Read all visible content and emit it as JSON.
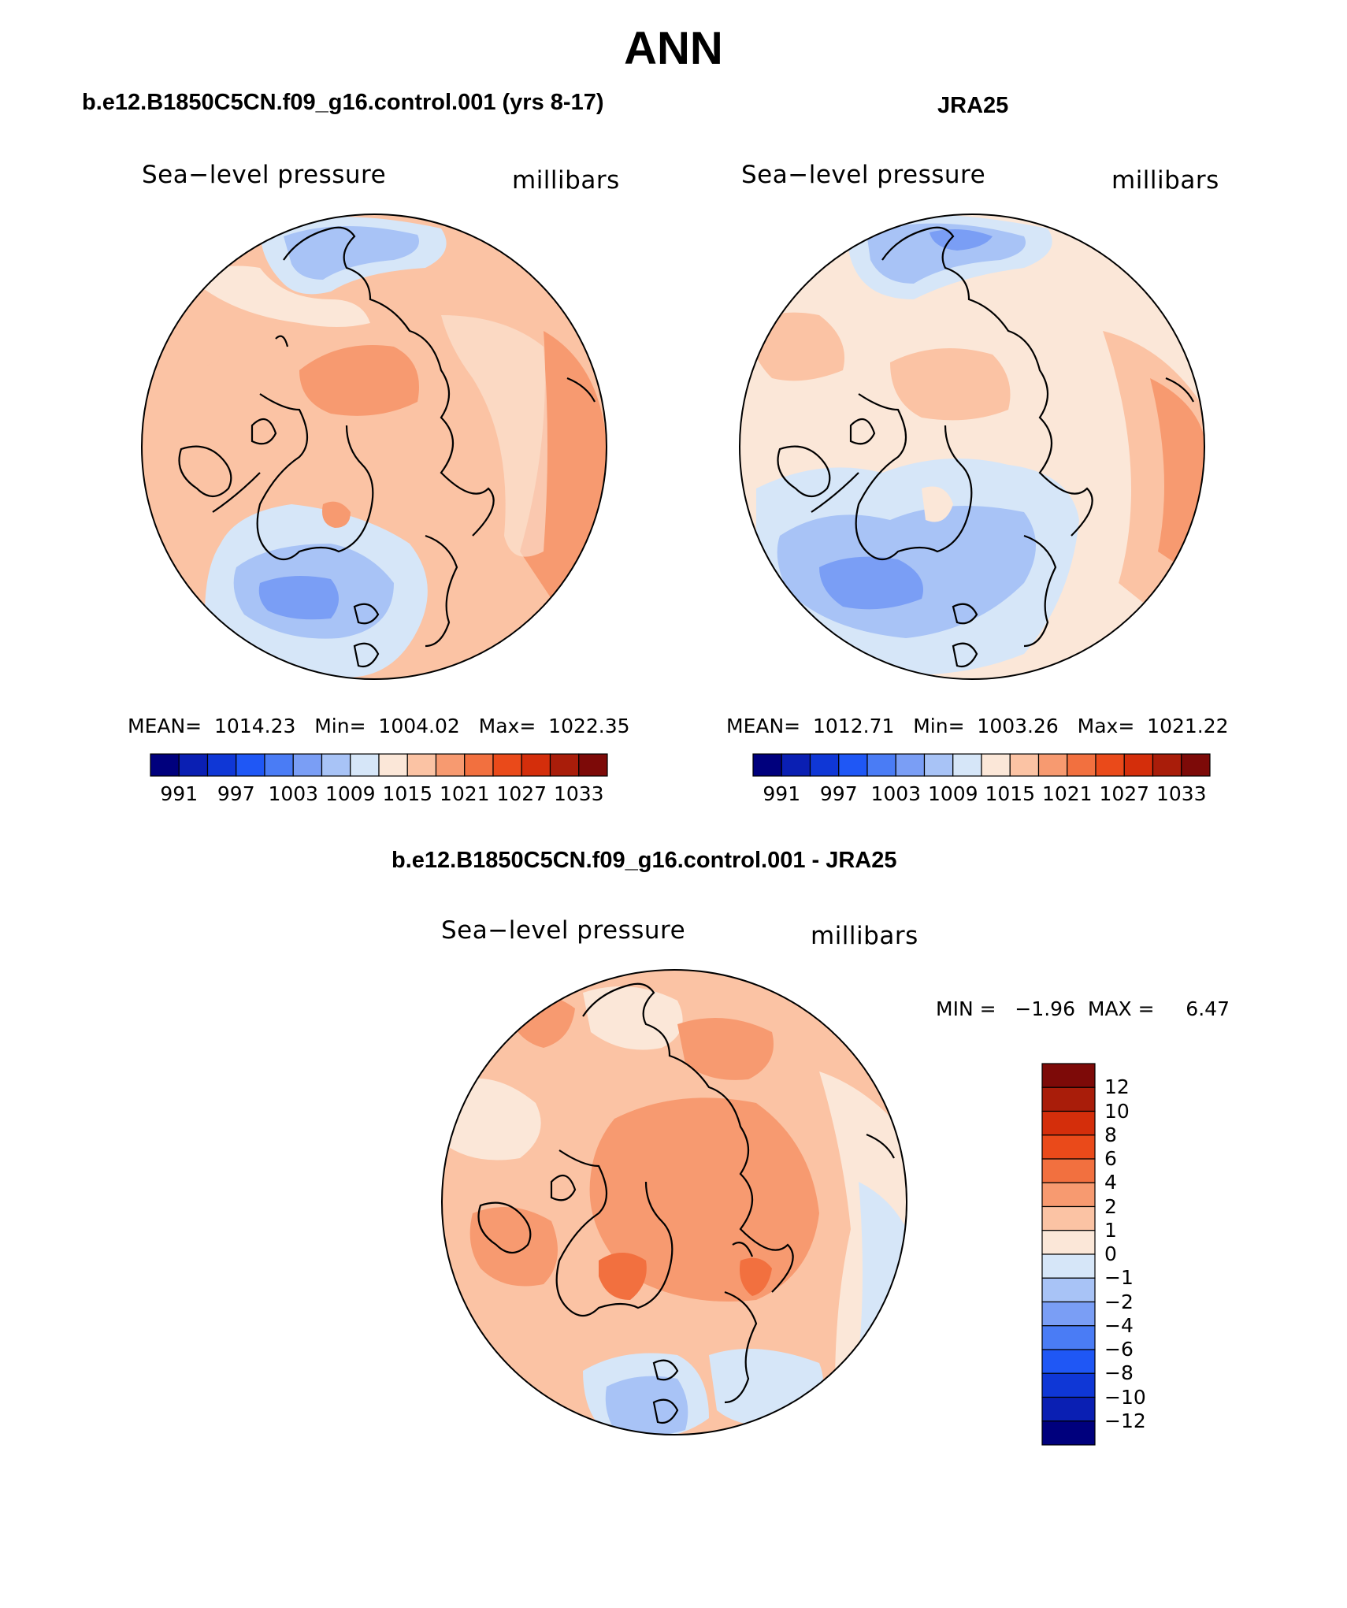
{
  "title": "ANN",
  "panels": {
    "model": {
      "title": "b.e12.B1850C5CN.f09_g16.control.001 (yrs 8-17)",
      "variable": "Sea−level pressure",
      "units": "millibars",
      "stats": "MEAN=  1014.23   Min=  1004.02   Max=  1022.35"
    },
    "obs": {
      "title": "JRA25",
      "variable": "Sea−level pressure",
      "units": "millibars",
      "stats": "MEAN=  1012.71   Min=  1003.26   Max=  1021.22"
    },
    "diff": {
      "title": "b.e12.B1850C5CN.f09_g16.control.001 - JRA25",
      "variable": "Sea−level pressure",
      "units": "millibars",
      "stats": "MIN =   −1.96  MAX =     6.47"
    }
  },
  "colorbar_abs": {
    "colors": [
      "#00007d",
      "#0a1fb3",
      "#0f37d6",
      "#1f57f5",
      "#4a7cf5",
      "#7a9ef5",
      "#a8c3f6",
      "#d6e6f8",
      "#fbe7d8",
      "#fbc3a4",
      "#f79a70",
      "#f2703f",
      "#ea4a1a",
      "#d42e0b",
      "#a91d0a",
      "#7d0a08"
    ],
    "ticks": [
      "991",
      "997",
      "1003",
      "1009",
      "1015",
      "1021",
      "1027",
      "1033"
    ]
  },
  "colorbar_diff": {
    "colors": [
      "#7d0a08",
      "#a91d0a",
      "#d42e0b",
      "#ea4a1a",
      "#f2703f",
      "#f79a70",
      "#fbc3a4",
      "#fbe7d8",
      "#d6e6f8",
      "#a8c3f6",
      "#7a9ef5",
      "#4a7cf5",
      "#1f57f5",
      "#0f37d6",
      "#0a1fb3",
      "#00007d"
    ],
    "ticks": [
      "12",
      "10",
      "8",
      "6",
      "4",
      "2",
      "1",
      "0",
      "−1",
      "−2",
      "−4",
      "−6",
      "−8",
      "−10",
      "−12"
    ]
  }
}
